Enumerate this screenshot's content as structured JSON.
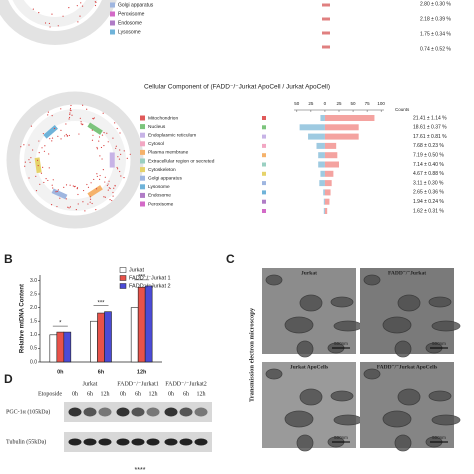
{
  "top_panel": {
    "legend": [
      "Golgi apparatus",
      "Peroxisome",
      "Endosome",
      "Lysosome"
    ],
    "percentages": [
      "2.80 ± 0.30 %",
      "2.18 ± 0.39 %",
      "1.75 ± 0.34 %",
      "0.74 ± 0.52 %"
    ]
  },
  "middle_panel": {
    "title": "Cellular Component of  (FADD⁻/⁻Jurkat ApoCell / Jurkat ApoCell)",
    "percentages": [
      "21.41 ± 1.14 %",
      "18.61 ± 0.37 %",
      "17.61 ± 0.81 %",
      "7.68 ± 0.23 %",
      "7.19 ± 0.50 %",
      "7.14 ± 0.40 %",
      "4.67 ± 0.88 %",
      "3.11 ± 0.30 %",
      "2.65 ± 0.36 %",
      "1.94 ± 0.24 %",
      "1.62 ± 0.31 %"
    ]
  },
  "chart_data": [
    {
      "type": "diverging_bar",
      "xlabel": "Counts",
      "categories": [
        "Mitochondrion",
        "Nucleus",
        "Endoplasmic reticulum",
        "Cytosol",
        "Plasma membrane",
        "Extracellular region or secreted",
        "Cytoskeleton",
        "Golgi apparatus",
        "Lysosome",
        "Endosome",
        "Peroxisome"
      ],
      "category_colors": [
        "#e05a5a",
        "#7cc47c",
        "#c7b3e6",
        "#f2a7c3",
        "#f5b26b",
        "#9ad0c2",
        "#e6d36a",
        "#9fb6e0",
        "#6fb3d9",
        "#b07cc6",
        "#d36ac7"
      ],
      "series": [
        {
          "color": "#9ecae1",
          "values": [
            -8,
            -45,
            -30,
            -15,
            -12,
            -12,
            -8,
            -10,
            -3,
            -2,
            -2
          ]
        },
        {
          "color": "#f4a3a0",
          "values": [
            88,
            60,
            60,
            20,
            22,
            25,
            15,
            12,
            10,
            8,
            4
          ]
        }
      ],
      "xlim": [
        -55,
        105
      ],
      "xticks": [
        {
          "value": -50,
          "label": "50"
        },
        {
          "value": -25,
          "label": "25"
        },
        0,
        25,
        50,
        75,
        100
      ]
    },
    {
      "type": "bar",
      "panel_label": "B",
      "ylabel": "Relative mtDNA Content",
      "categories": [
        "0h",
        "6h",
        "12h"
      ],
      "series": [
        {
          "name": "Jurkat",
          "color": "#ffffff",
          "values": [
            1.0,
            1.5,
            2.0
          ]
        },
        {
          "name": "FADD⁻/⁻Jurkat 1",
          "color": "#e8524a",
          "values": [
            1.1,
            1.8,
            2.75
          ]
        },
        {
          "name": "FADD⁻/⁻Jurkat 2",
          "color": "#4b4bd6",
          "values": [
            1.1,
            1.85,
            2.8
          ]
        }
      ],
      "significance": [
        "*",
        "***",
        "***"
      ],
      "ylim": [
        0,
        3.2
      ],
      "yticks": [
        {
          "value": 0,
          "label": "0.0"
        },
        0.5,
        {
          "value": 1,
          "label": "1.0"
        },
        1.5,
        {
          "value": 2,
          "label": "2.0"
        },
        2.5,
        {
          "value": 3,
          "label": "3.0"
        }
      ]
    }
  ],
  "panel_c": {
    "label": "C",
    "y_label": "Transmission electron microscopy",
    "images": [
      {
        "title": "Jurkat",
        "scale": "500nm"
      },
      {
        "title": "FADD⁻/⁻Jurkat",
        "scale": "500nm"
      },
      {
        "title": "Jurkat ApoCells",
        "scale": "500nm"
      },
      {
        "title": "FADD⁻/⁻Jurkat ApoCells",
        "scale": "500nm"
      }
    ]
  },
  "panel_d": {
    "label": "D",
    "treatment": "Etoposide",
    "groups": [
      "Jurkat",
      "FADD⁻/⁻Jurkat1",
      "FADD⁻/⁻Jurkat2"
    ],
    "timepoints": [
      "0h",
      "6h",
      "12h"
    ],
    "blots": [
      "PGC-1α (105kDa)",
      "Tubulin (55kDa)"
    ],
    "bottom_annotation": "****"
  }
}
